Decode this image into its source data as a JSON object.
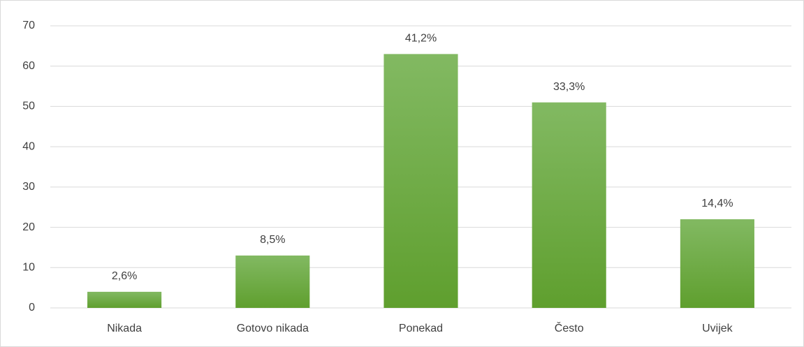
{
  "chart_data": {
    "type": "bar",
    "categories": [
      "Nikada",
      "Gotovo nikada",
      "Ponekad",
      "Često",
      "Uvijek"
    ],
    "values": [
      4,
      13,
      63,
      51,
      22
    ],
    "value_labels": [
      "2,6%",
      "8,5%",
      "41,2%",
      "33,3%",
      "14,4%"
    ],
    "color": "#6aac3c",
    "ylim": [
      0,
      70
    ],
    "yticks": [
      0,
      10,
      20,
      30,
      40,
      50,
      60,
      70
    ],
    "grid": true
  }
}
